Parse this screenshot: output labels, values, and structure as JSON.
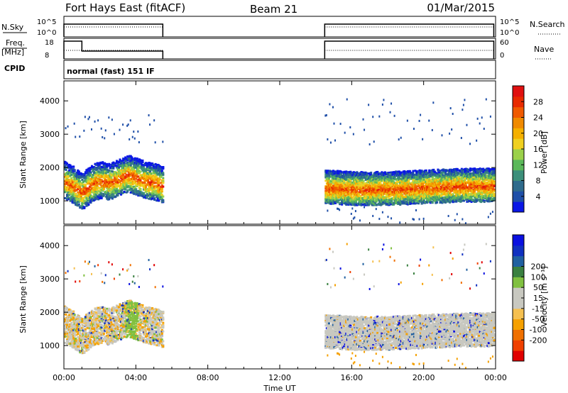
{
  "header": {
    "station": "Fort Hays East (fitACF)",
    "beam": "Beam 21",
    "date": "01/Mar/2015"
  },
  "params": {
    "nsky_label": "N.Sky",
    "nsky_ticks": [
      "10^5",
      "10^0"
    ],
    "nsearch_label": "N.Search",
    "freq_label_line1": "Freq.",
    "freq_label_line2": "[MHz]",
    "freq_ticks": [
      "18",
      "8"
    ],
    "nave_label": "Nave",
    "nave_ticks": [
      "60",
      "0"
    ],
    "cpid_label": "CPID",
    "cpid_text": "normal (fast) 151 IF"
  },
  "colors": {
    "power_scale": [
      "#0a17e6",
      "#1f4fa8",
      "#2f6b8c",
      "#3c8f7a",
      "#5bb85a",
      "#9bd14a",
      "#f0d020",
      "#f5b000",
      "#f08a00",
      "#f05a00",
      "#e82a00",
      "#e01010"
    ],
    "velocity_scale": [
      "#e00000",
      "#f04000",
      "#f07000",
      "#f5a000",
      "#f5c050",
      "#c8c8c0",
      "#c8c8c0",
      "#80c040",
      "#3a8040",
      "#2060a0",
      "#1030c0",
      "#0a10e0"
    ]
  },
  "chart_data": [
    {
      "type": "heatmap",
      "name": "power",
      "xlabel": "",
      "ylabel": "Slant Range [km]",
      "xlim": [
        0,
        24
      ],
      "ylim": [
        300,
        4600
      ],
      "yticks": [
        "1000",
        "2000",
        "3000",
        "4000"
      ],
      "colorbar_label": "Power [dB]",
      "colorbar_ticks": [
        "4",
        "8",
        "12",
        "16",
        "20",
        "24",
        "28"
      ],
      "colorbar_range": [
        0,
        32
      ],
      "data_segments": [
        {
          "start_hour": 0.0,
          "end_hour": 5.5
        },
        {
          "start_hour": 14.5,
          "end_hour": 23.9
        }
      ],
      "echo_band_center_km": [
        {
          "hour": 0.0,
          "km": 1600
        },
        {
          "hour": 0.5,
          "km": 1450
        },
        {
          "hour": 1.0,
          "km": 1250
        },
        {
          "hour": 1.5,
          "km": 1500
        },
        {
          "hour": 2.0,
          "km": 1600
        },
        {
          "hour": 2.5,
          "km": 1550
        },
        {
          "hour": 3.0,
          "km": 1650
        },
        {
          "hour": 3.5,
          "km": 1800
        },
        {
          "hour": 4.0,
          "km": 1700
        },
        {
          "hour": 4.5,
          "km": 1600
        },
        {
          "hour": 5.0,
          "km": 1550
        },
        {
          "hour": 5.5,
          "km": 1450
        },
        {
          "hour": 14.5,
          "km": 1400
        },
        {
          "hour": 16.0,
          "km": 1350
        },
        {
          "hour": 18.0,
          "km": 1350
        },
        {
          "hour": 20.0,
          "km": 1400
        },
        {
          "hour": 22.0,
          "km": 1450
        },
        {
          "hour": 23.9,
          "km": 1450
        }
      ]
    },
    {
      "type": "heatmap",
      "name": "velocity",
      "xlabel": "Time UT",
      "ylabel": "Slant Range [km]",
      "xlim": [
        0,
        24
      ],
      "ylim": [
        300,
        4600
      ],
      "xticks": [
        "00:00",
        "04:00",
        "08:00",
        "12:00",
        "16:00",
        "20:00",
        "00:00"
      ],
      "yticks": [
        "1000",
        "2000",
        "3000",
        "4000"
      ],
      "colorbar_label": "Velocity [m s⁻¹]",
      "colorbar_ticks": [
        "-200",
        "-100",
        "-50",
        "-15",
        "15",
        "50",
        "100",
        "200"
      ]
    }
  ]
}
